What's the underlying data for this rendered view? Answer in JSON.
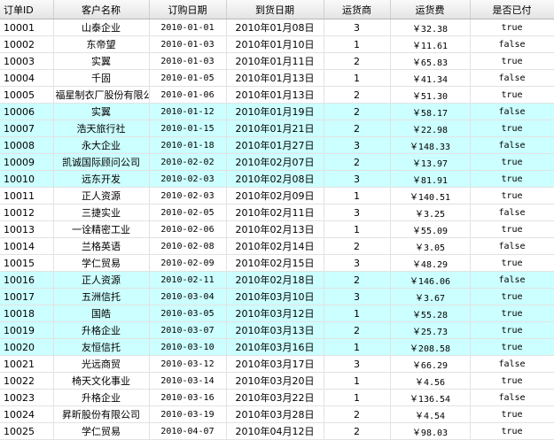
{
  "table": {
    "columns": [
      "订单ID",
      "客户名称",
      "订购日期",
      "到货日期",
      "运货商",
      "运货费",
      "是否已付"
    ],
    "rows": [
      [
        "10001",
        "山泰企业",
        "2010-01-01",
        "2010年01月08日",
        "3",
        "￥32.38",
        "true"
      ],
      [
        "10002",
        "东帝望",
        "2010-01-03",
        "2010年01月10日",
        "1",
        "￥11.61",
        "false"
      ],
      [
        "10003",
        "实翼",
        "2010-01-03",
        "2010年01月11日",
        "2",
        "￥65.83",
        "true"
      ],
      [
        "10004",
        "千固",
        "2010-01-05",
        "2010年01月13日",
        "1",
        "￥41.34",
        "false"
      ],
      [
        "10005",
        "福星制衣厂股份有限公司",
        "2010-01-06",
        "2010年01月13日",
        "2",
        "￥51.30",
        "true"
      ],
      [
        "10006",
        "实翼",
        "2010-01-12",
        "2010年01月19日",
        "2",
        "￥58.17",
        "false"
      ],
      [
        "10007",
        "浩天旅行社",
        "2010-01-15",
        "2010年01月21日",
        "2",
        "￥22.98",
        "true"
      ],
      [
        "10008",
        "永大企业",
        "2010-01-18",
        "2010年01月27日",
        "3",
        "￥148.33",
        "false"
      ],
      [
        "10009",
        "凯诚国际顾问公司",
        "2010-02-02",
        "2010年02月07日",
        "2",
        "￥13.97",
        "true"
      ],
      [
        "10010",
        "远东开发",
        "2010-02-03",
        "2010年02月08日",
        "3",
        "￥81.91",
        "true"
      ],
      [
        "10011",
        "正人资源",
        "2010-02-03",
        "2010年02月09日",
        "1",
        "￥140.51",
        "true"
      ],
      [
        "10012",
        "三捷实业",
        "2010-02-05",
        "2010年02月11日",
        "3",
        "￥3.25",
        "false"
      ],
      [
        "10013",
        "一诠精密工业",
        "2010-02-06",
        "2010年02月13日",
        "1",
        "￥55.09",
        "true"
      ],
      [
        "10014",
        "兰格英语",
        "2010-02-08",
        "2010年02月14日",
        "2",
        "￥3.05",
        "false"
      ],
      [
        "10015",
        "学仁贸易",
        "2010-02-09",
        "2010年02月15日",
        "3",
        "￥48.29",
        "true"
      ],
      [
        "10016",
        "正人资源",
        "2010-02-11",
        "2010年02月18日",
        "2",
        "￥146.06",
        "false"
      ],
      [
        "10017",
        "五洲信托",
        "2010-03-04",
        "2010年03月10日",
        "3",
        "￥3.67",
        "true"
      ],
      [
        "10018",
        "国皓",
        "2010-03-05",
        "2010年03月12日",
        "1",
        "￥55.28",
        "true"
      ],
      [
        "10019",
        "升格企业",
        "2010-03-07",
        "2010年03月13日",
        "2",
        "￥25.73",
        "true"
      ],
      [
        "10020",
        "友恒信托",
        "2010-03-10",
        "2010年03月16日",
        "1",
        "￥208.58",
        "true"
      ],
      [
        "10021",
        "光远商贸",
        "2010-03-12",
        "2010年03月17日",
        "3",
        "￥66.29",
        "false"
      ],
      [
        "10022",
        "椅天文化事业",
        "2010-03-14",
        "2010年03月20日",
        "1",
        "￥4.56",
        "true"
      ],
      [
        "10023",
        "升格企业",
        "2010-03-16",
        "2010年03月22日",
        "1",
        "￥136.54",
        "false"
      ],
      [
        "10024",
        "昇昕股份有限公司",
        "2010-03-19",
        "2010年03月28日",
        "2",
        "￥4.54",
        "true"
      ],
      [
        "10025",
        "学仁贸易",
        "2010-04-07",
        "2010年04月12日",
        "2",
        "￥98.03",
        "true"
      ]
    ]
  }
}
